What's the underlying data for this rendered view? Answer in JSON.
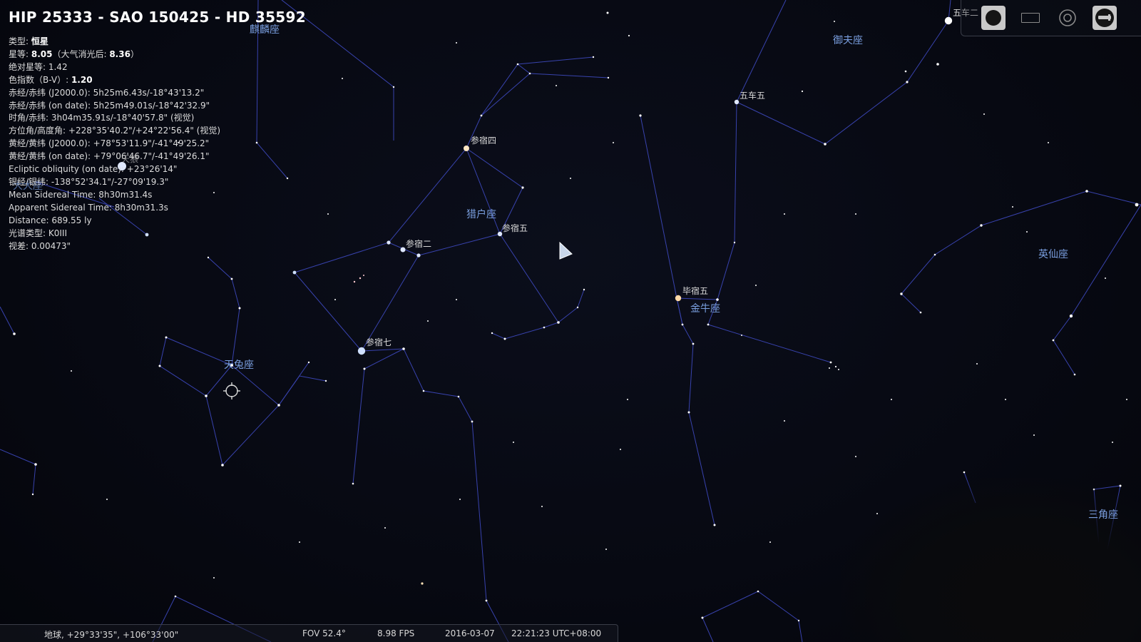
{
  "object": {
    "title": "HIP 25333 - SAO 150425 - HD 35592",
    "details": [
      {
        "label": "类型: ",
        "value": "恒星",
        "bold": true
      },
      {
        "label": "星等: ",
        "value": "8.05",
        "bold": true,
        "extra": "（大气消光后: ",
        "extra_value": "8.36",
        "extra_end": "）"
      },
      {
        "label": "绝对星等: ",
        "value": "1.42"
      },
      {
        "label": "色指数（B-V）: ",
        "value": "1.20",
        "bold": true
      },
      {
        "label": "赤经/赤纬 (J2000.0): ",
        "value": "5h25m6.43s/-18°43'13.2\""
      },
      {
        "label": "赤经/赤纬 (on date): ",
        "value": "5h25m49.01s/-18°42'32.9\""
      },
      {
        "label": "时角/赤纬: ",
        "value": "3h04m35.91s/-18°40'57.8\" (视觉)"
      },
      {
        "label": "方位角/高度角: ",
        "value": "+228°35'40.2\"/+24°22'56.4\" (视觉)"
      },
      {
        "label": "黄经/黄纬 (J2000.0): ",
        "value": "+78°53'11.9\"/-41°49'25.2\""
      },
      {
        "label": "黄经/黄纬 (on date): ",
        "value": "+79°06'46.7\"/-41°49'26.1\""
      },
      {
        "label": "Ecliptic obliquity (on date): ",
        "value": "+23°26'14\""
      },
      {
        "label": "银经/银纬: ",
        "value": "-138°52'34.1\"/-27°09'19.3\""
      },
      {
        "label": "Mean Sidereal Time: ",
        "value": "8h30m31.4s"
      },
      {
        "label": "Apparent Sidereal Time: ",
        "value": "8h30m31.3s"
      },
      {
        "label": "Distance: ",
        "value": "689.55 ly"
      },
      {
        "label": "光谱类型: ",
        "value": "K0III"
      },
      {
        "label": "视差: ",
        "value": "0.00473\""
      }
    ]
  },
  "constellations": {
    "orion": "猎户座",
    "taurus": "金牛座",
    "auriga": "御夫座",
    "perseus": "英仙座",
    "lepus": "天兔座",
    "monoceros": "麒麟座",
    "triangulum": "三角座",
    "canis_major": "大犬座"
  },
  "stars": {
    "betelgeuse": "参宿四",
    "bellatrix": "参宿五",
    "alnilam": "参宿二",
    "rigel": "参宿七",
    "aldebaran": "毕宿五",
    "elnath": "五车五",
    "menkalinan": "五车二",
    "sirius": "天狼"
  },
  "status_bar": {
    "location": "地球, +29°33'35\", +106°33'00\"",
    "fov": "FOV 52.4°",
    "fps": "8.98 FPS",
    "date": "2016-03-07",
    "time": "22:21:23 UTC+08:00"
  },
  "toolbar": {
    "buttons": [
      "full-disk-icon",
      "rectangle-icon",
      "target-icon",
      "telescope-icon"
    ]
  },
  "colors": {
    "constellation_line": "#3a46b8",
    "constellation_label": "#7a9fe0",
    "star_label": "#d9d9d9",
    "background": "#070912"
  }
}
